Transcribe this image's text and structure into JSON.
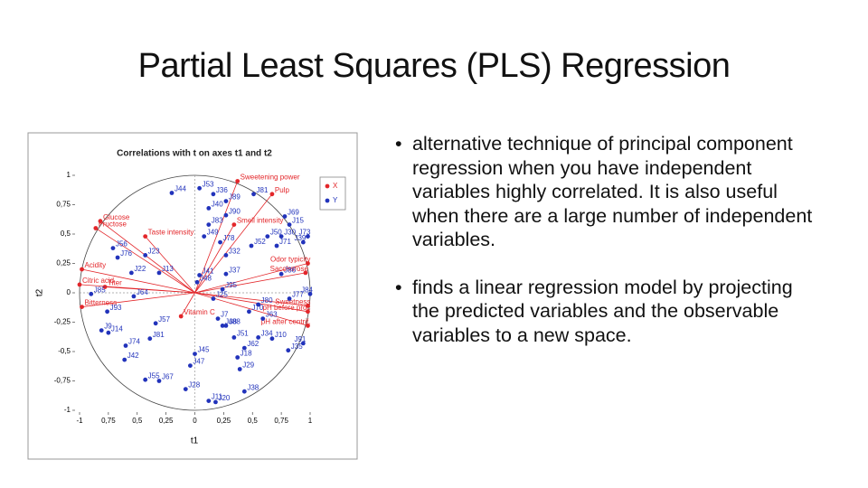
{
  "title": "Partial Least Squares (PLS) Regression",
  "bullets": [
    "alternative technique of principal component regression when you have independent variables highly correlated. It is also useful when there are a large number of independent variables.",
    "finds a linear regression model by projecting the predicted variables and the observable variables to a new space."
  ],
  "chart_data": {
    "type": "scatter",
    "title": "Correlations with t on axes t1 and t2",
    "x_label": "t1",
    "y_label": "t2",
    "xlim": [
      -1,
      1
    ],
    "ylim": [
      -1,
      1
    ],
    "xticks": [
      {
        "value": -1,
        "label": "-1"
      },
      {
        "value": -0.75,
        "label": "0,75"
      },
      {
        "value": -0.5,
        "label": "0,5"
      },
      {
        "value": -0.25,
        "label": "0,25"
      },
      0,
      {
        "value": 0.25,
        "label": "0,25"
      },
      {
        "value": 0.5,
        "label": "0,5"
      },
      {
        "value": 0.75,
        "label": "0,75"
      },
      1
    ],
    "yticks": [
      1,
      {
        "value": 0.75,
        "label": "0,75"
      },
      {
        "value": 0.5,
        "label": "0,5"
      },
      {
        "value": 0.25,
        "label": "0,25"
      },
      0,
      {
        "value": -0.25,
        "label": "-0,25"
      },
      {
        "value": -0.5,
        "label": "-0,5"
      },
      {
        "value": -0.75,
        "label": "-0,75"
      },
      -1
    ],
    "series": [
      {
        "name": "X",
        "color": "#e3262a",
        "labels": [
          "Sweetening power",
          "Pulp",
          "Glucose",
          "Fructose",
          "Taste intensity",
          "Smell intensity",
          "Acidity",
          "Citric acid",
          "Titer",
          "Bitterness",
          "Vitamin C",
          "Odor typicity",
          "Saccharose",
          "Sweetness",
          "pH before proc",
          "pH after centrif."
        ],
        "x": [
          0.37,
          0.67,
          -0.82,
          -0.86,
          -0.43,
          0.34,
          -0.98,
          -1,
          -0.78,
          -0.98,
          -0.12,
          0.98,
          0.96,
          0.98,
          0.98,
          0.98
        ],
        "values": [
          0.95,
          0.84,
          0.61,
          0.55,
          0.48,
          0.58,
          0.2,
          0.07,
          0.05,
          -0.12,
          -0.2,
          0.25,
          0.17,
          -0.11,
          -0.16,
          -0.28
        ]
      },
      {
        "name": "Y",
        "color": "#2233bb",
        "labels": [
          "J44",
          "J53",
          "J36",
          "J89",
          "J81",
          "J40",
          "J90",
          "J83",
          "J49",
          "J78",
          "J32",
          "J37",
          "J56",
          "J76",
          "J23",
          "J22",
          "J13",
          "J41",
          "J48",
          "J85",
          "J64",
          "J95",
          "J25",
          "J9",
          "J14",
          "J93",
          "J57",
          "J74",
          "J81",
          "J42",
          "J55",
          "J67",
          "J45",
          "J47",
          "J28",
          "J11",
          "J20",
          "J29",
          "J38",
          "J68",
          "J51",
          "J62",
          "J18",
          "J34",
          "J10",
          "J63",
          "J35",
          "J91",
          "J86",
          "J30",
          "J73",
          "J39",
          "J71",
          "J52",
          "J50",
          "J84",
          "J77",
          "J70",
          "J80",
          "J7",
          "J15",
          "J69",
          "J88"
        ],
        "x": [
          -0.2,
          0.04,
          0.16,
          0.27,
          0.51,
          0.12,
          0.27,
          0.12,
          0.08,
          0.22,
          0.27,
          0.27,
          -0.71,
          -0.67,
          -0.43,
          -0.55,
          -0.31,
          0.04,
          0.02,
          -0.9,
          -0.53,
          0.24,
          0.16,
          -0.81,
          -0.75,
          -0.76,
          -0.34,
          -0.6,
          -0.39,
          -0.61,
          -0.43,
          -0.31,
          0,
          -0.04,
          -0.08,
          0.12,
          0.18,
          0.39,
          0.43,
          0.24,
          0.34,
          0.43,
          0.37,
          0.55,
          0.67,
          0.59,
          0.81,
          0.94,
          0.75,
          0.75,
          0.98,
          0.94,
          0.71,
          0.49,
          0.63,
          1,
          0.82,
          0.47,
          0.55,
          0.2,
          0.82,
          0.78,
          0.27
        ],
        "values": [
          0.85,
          0.89,
          0.84,
          0.78,
          0.84,
          0.72,
          0.66,
          0.58,
          0.48,
          0.43,
          0.32,
          0.16,
          0.38,
          0.3,
          0.32,
          0.17,
          0.17,
          0.15,
          0.09,
          -0.01,
          -0.03,
          0.03,
          -0.05,
          -0.32,
          -0.34,
          -0.16,
          -0.26,
          -0.45,
          -0.39,
          -0.57,
          -0.74,
          -0.75,
          -0.52,
          -0.62,
          -0.82,
          -0.92,
          -0.93,
          -0.65,
          -0.84,
          -0.28,
          -0.38,
          -0.47,
          -0.55,
          -0.38,
          -0.39,
          -0.22,
          -0.49,
          -0.43,
          0.16,
          0.48,
          0.48,
          0.43,
          0.4,
          0.4,
          0.48,
          -0.01,
          -0.05,
          -0.16,
          -0.1,
          -0.22,
          0.58,
          0.65,
          -0.28
        ]
      }
    ]
  }
}
